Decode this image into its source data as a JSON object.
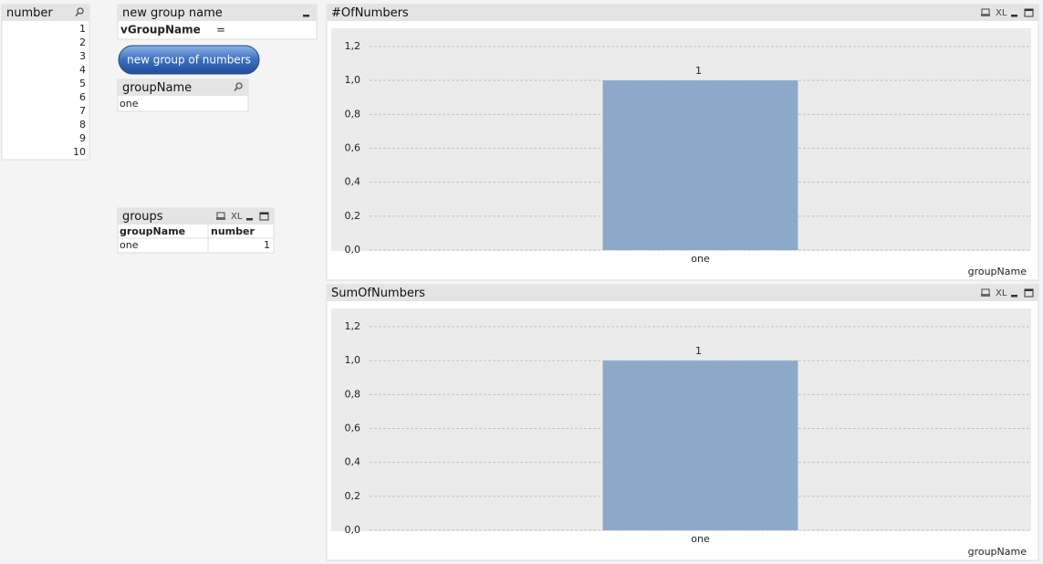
{
  "listbox_number": {
    "title": "number",
    "values": [
      1,
      2,
      3,
      4,
      5,
      6,
      7,
      8,
      9,
      10
    ]
  },
  "input_box": {
    "title": "new group name",
    "variable": "vGroupName",
    "operator": "="
  },
  "button": {
    "label": "new group of numbers"
  },
  "listbox_groupName": {
    "title": "groupName",
    "values": [
      "one"
    ]
  },
  "table_groups": {
    "title": "groups",
    "columns": [
      "groupName",
      "number"
    ],
    "rows": [
      [
        "one",
        1
      ]
    ]
  },
  "xl_label": "XL",
  "chart_data": [
    {
      "type": "bar",
      "title": "#OfNumbers",
      "categories": [
        "one"
      ],
      "values": [
        1
      ],
      "color": "#8da9c9",
      "xlabel": "groupName",
      "ylim": [
        0,
        1.2
      ],
      "grid": true,
      "yticks": [
        {
          "value": 0,
          "label": "0,0"
        },
        {
          "value": 0.2,
          "label": "0,2"
        },
        {
          "value": 0.4,
          "label": "0,4"
        },
        {
          "value": 0.6,
          "label": "0,6"
        },
        {
          "value": 0.8,
          "label": "0,8"
        },
        {
          "value": 1,
          "label": "1,0"
        },
        {
          "value": 1.2,
          "label": "1,2"
        }
      ]
    },
    {
      "type": "bar",
      "title": "SumOfNumbers",
      "categories": [
        "one"
      ],
      "values": [
        1
      ],
      "color": "#8da9c9",
      "xlabel": "groupName",
      "ylim": [
        0,
        1.2
      ],
      "grid": true,
      "yticks": [
        {
          "value": 0,
          "label": "0,0"
        },
        {
          "value": 0.2,
          "label": "0,2"
        },
        {
          "value": 0.4,
          "label": "0,4"
        },
        {
          "value": 0.6,
          "label": "0,6"
        },
        {
          "value": 0.8,
          "label": "0,8"
        },
        {
          "value": 1,
          "label": "1,0"
        },
        {
          "value": 1.2,
          "label": "1,2"
        }
      ]
    }
  ]
}
